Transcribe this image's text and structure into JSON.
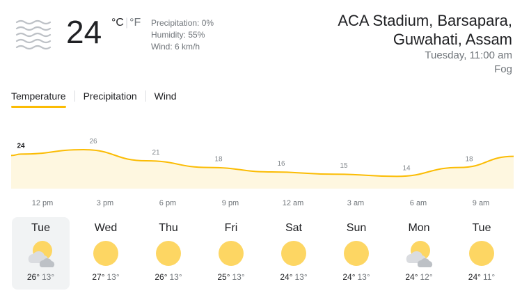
{
  "current": {
    "temperature": "24",
    "unit_c": "°C",
    "unit_sep": "|",
    "unit_f": "°F",
    "icon": "fog-icon",
    "precipitation": "Precipitation: 0%",
    "humidity": "Humidity: 55%",
    "wind": "Wind: 6 km/h"
  },
  "location": {
    "line1": "ACA Stadium, Barsapara,",
    "line2": "Guwahati, Assam",
    "time": "Tuesday, 11:00 am",
    "condition": "Fog"
  },
  "tabs": [
    {
      "label": "Temperature",
      "active": true
    },
    {
      "label": "Precipitation",
      "active": false
    },
    {
      "label": "Wind",
      "active": false
    }
  ],
  "chart_data": {
    "type": "area",
    "x": [
      "12 pm",
      "3 pm",
      "6 pm",
      "9 pm",
      "12 am",
      "3 am",
      "6 am",
      "9 am"
    ],
    "values": [
      24,
      26,
      21,
      18,
      16,
      15,
      14,
      18
    ],
    "fill_color": "#fef7e0",
    "line_color": "#fbbc04"
  },
  "hour_labels": [
    "12 pm",
    "3 pm",
    "6 pm",
    "9 pm",
    "12 am",
    "3 am",
    "6 am",
    "9 am"
  ],
  "days": [
    {
      "name": "Tue",
      "hi": "26°",
      "lo": "13°",
      "icon": "partly-cloudy-icon",
      "selected": true
    },
    {
      "name": "Wed",
      "hi": "27°",
      "lo": "13°",
      "icon": "sunny-icon",
      "selected": false
    },
    {
      "name": "Thu",
      "hi": "26°",
      "lo": "13°",
      "icon": "sunny-icon",
      "selected": false
    },
    {
      "name": "Fri",
      "hi": "25°",
      "lo": "13°",
      "icon": "sunny-icon",
      "selected": false
    },
    {
      "name": "Sat",
      "hi": "24°",
      "lo": "13°",
      "icon": "sunny-icon",
      "selected": false
    },
    {
      "name": "Sun",
      "hi": "24°",
      "lo": "13°",
      "icon": "sunny-icon",
      "selected": false
    },
    {
      "name": "Mon",
      "hi": "24°",
      "lo": "12°",
      "icon": "partly-cloudy-icon",
      "selected": false
    },
    {
      "name": "Tue",
      "hi": "24°",
      "lo": "11°",
      "icon": "sunny-icon",
      "selected": false
    }
  ],
  "colors": {
    "accent": "#fbbc04",
    "sun": "#fdd663",
    "cloud": "#dadce0"
  }
}
